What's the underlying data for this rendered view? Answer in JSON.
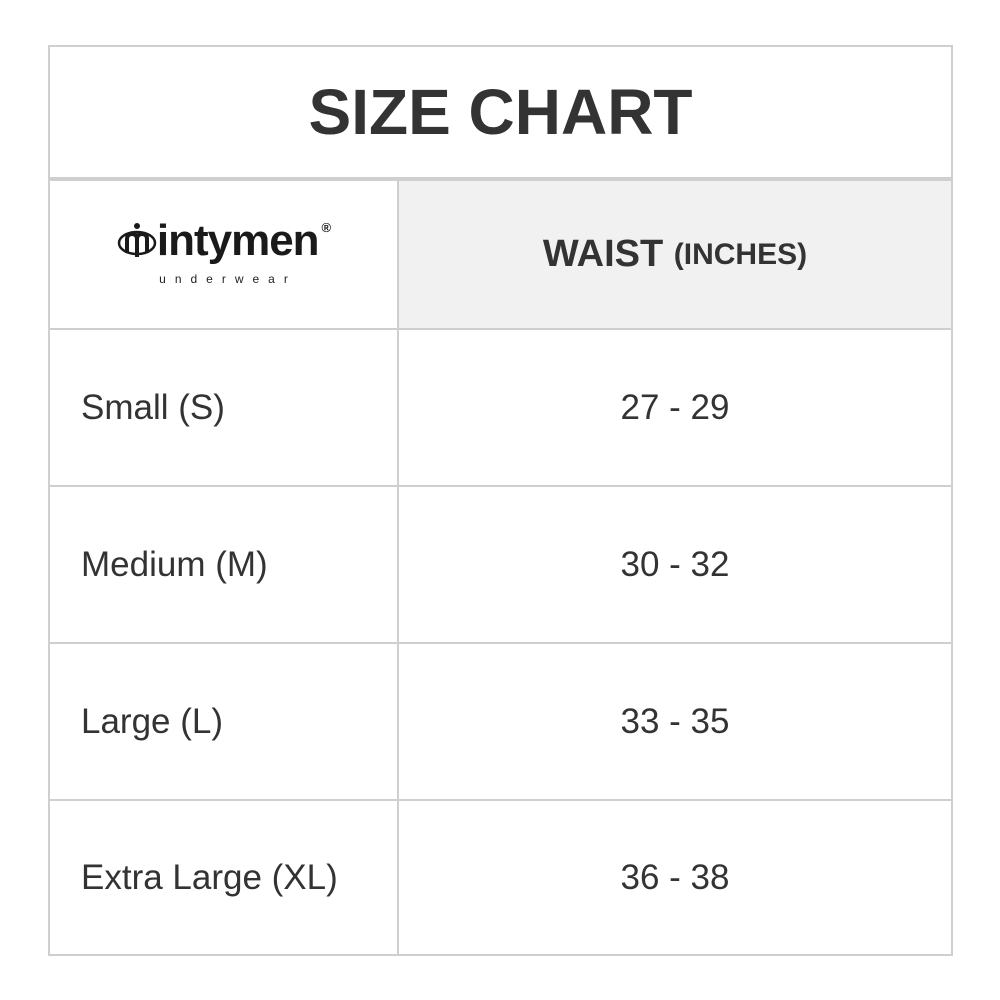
{
  "title": "SIZE CHART",
  "logo": {
    "brand": "intymen",
    "sub": "underwear",
    "reg": "®"
  },
  "header": {
    "waist": "WAIST",
    "unit": "(INCHES)"
  },
  "rows": [
    {
      "size": "Small (S)",
      "waist": "27 - 29"
    },
    {
      "size": "Medium (M)",
      "waist": "30 - 32"
    },
    {
      "size": "Large (L)",
      "waist": "33 - 35"
    },
    {
      "size": "Extra Large (XL)",
      "waist": "36 - 38"
    }
  ]
}
